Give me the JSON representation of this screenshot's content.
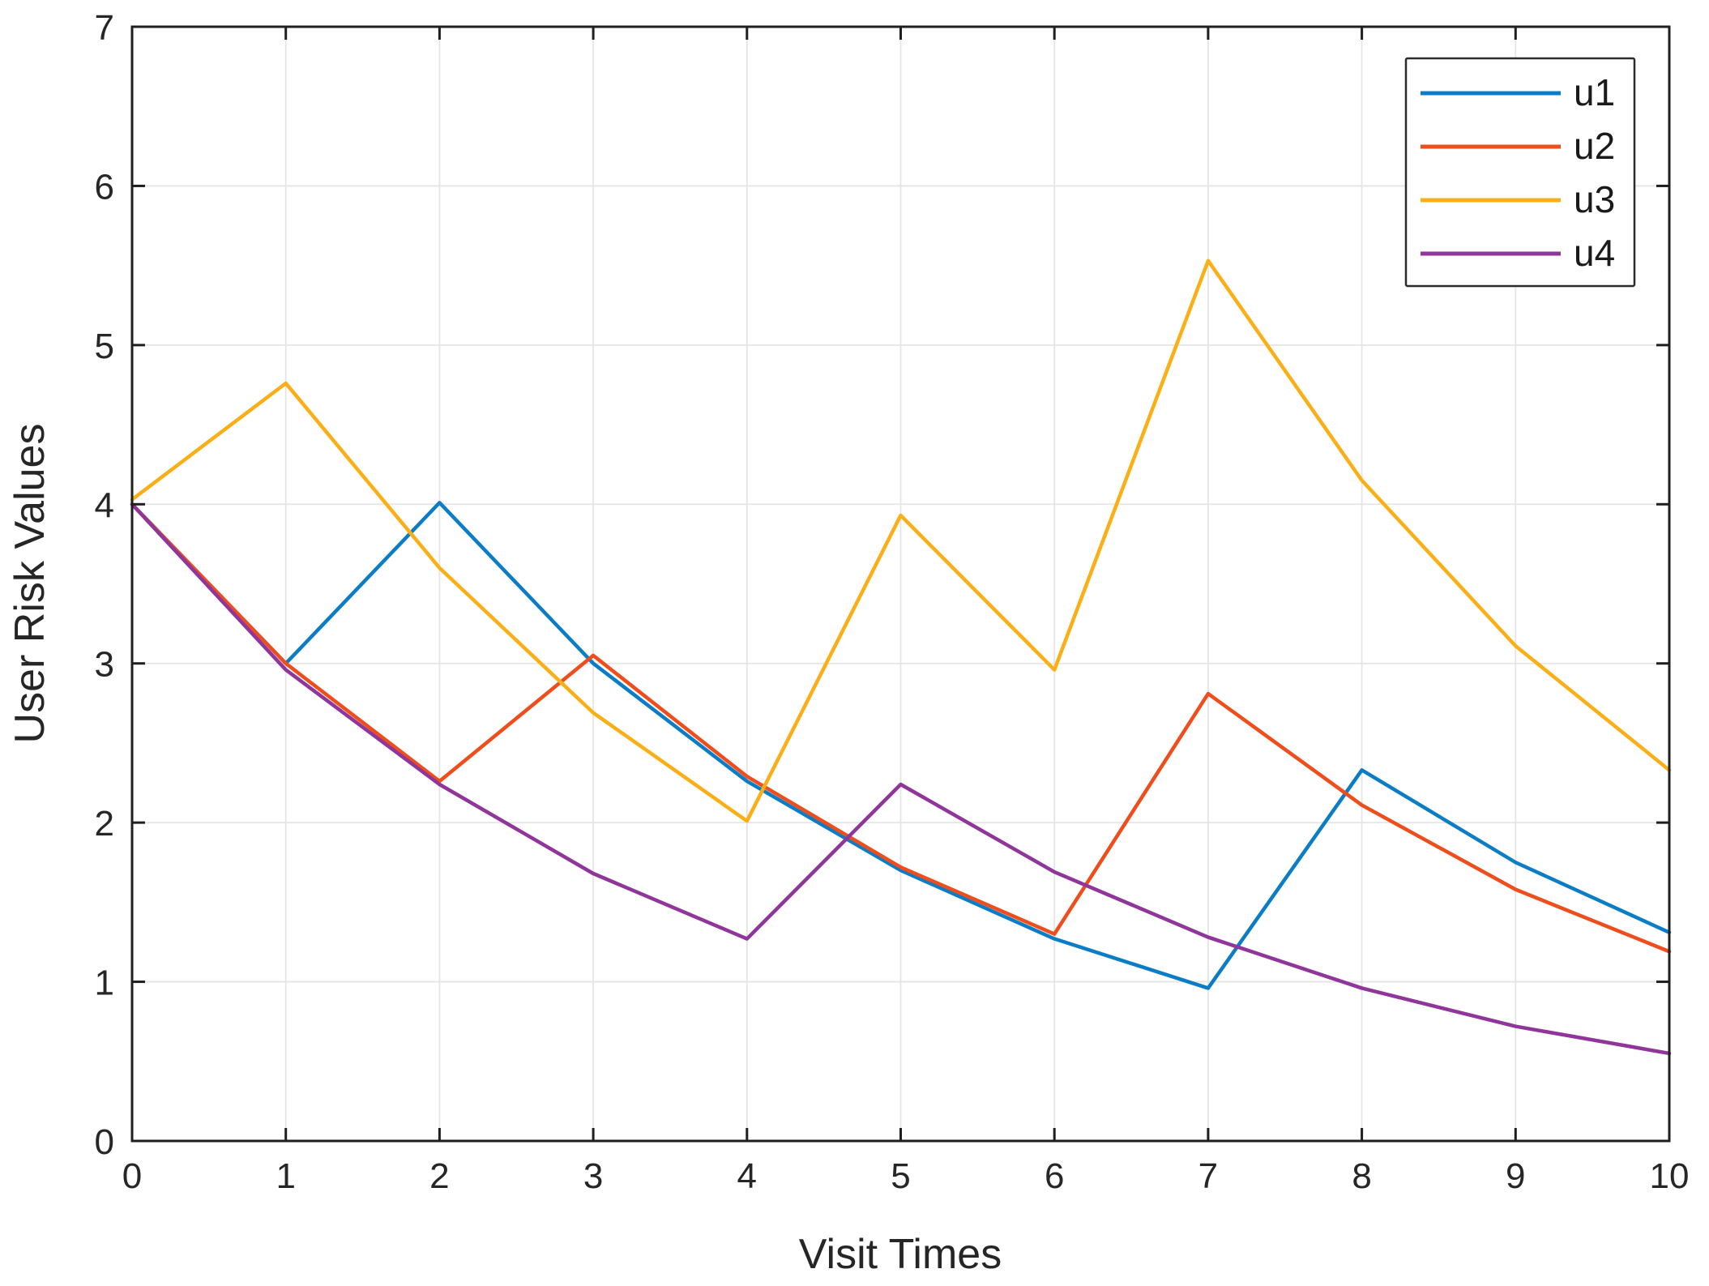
{
  "chart_data": {
    "type": "line",
    "title": "",
    "xlabel": "Visit Times",
    "ylabel": "User Risk Values",
    "xlim": [
      0,
      10
    ],
    "ylim": [
      0,
      7
    ],
    "xticks": [
      0,
      1,
      2,
      3,
      4,
      5,
      6,
      7,
      8,
      9,
      10
    ],
    "yticks": [
      0,
      1,
      2,
      3,
      4,
      5,
      6,
      7
    ],
    "grid": true,
    "legend_position": "top-right",
    "x": [
      0,
      1,
      2,
      3,
      4,
      5,
      6,
      7,
      8,
      9,
      10
    ],
    "series": [
      {
        "name": "u1",
        "color": "#0B7DC6",
        "values": [
          4.0,
          3.0,
          4.01,
          3.0,
          2.26,
          1.7,
          1.27,
          0.96,
          2.33,
          1.75,
          1.31
        ]
      },
      {
        "name": "u2",
        "color": "#EF4E1C",
        "values": [
          4.0,
          3.0,
          2.26,
          3.05,
          2.29,
          1.72,
          1.3,
          2.81,
          2.11,
          1.58,
          1.19
        ]
      },
      {
        "name": "u3",
        "color": "#FBAF17",
        "values": [
          4.03,
          4.76,
          3.6,
          2.69,
          2.01,
          3.93,
          2.96,
          5.53,
          4.15,
          3.11,
          2.33
        ]
      },
      {
        "name": "u4",
        "color": "#90359A",
        "values": [
          4.0,
          2.96,
          2.24,
          1.68,
          1.27,
          2.24,
          1.69,
          1.28,
          0.96,
          0.72,
          0.55
        ]
      }
    ],
    "style": {
      "grid_color": "#E5E5E5",
      "axis_color": "#1F1F1F",
      "text_color": "#262626",
      "background": "#FFFFFF"
    }
  }
}
